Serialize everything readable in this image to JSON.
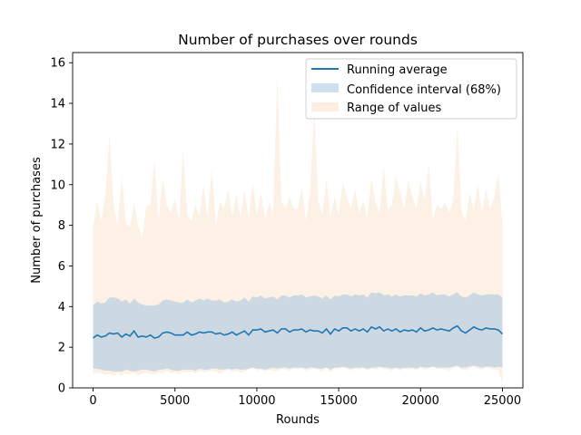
{
  "chart_data": {
    "type": "line",
    "title": "Number of purchases over rounds",
    "xlabel": "Rounds",
    "ylabel": "Number of purchases",
    "xlim": [
      -1250,
      26250
    ],
    "ylim": [
      0,
      16.5
    ],
    "xticks": [
      0,
      5000,
      10000,
      15000,
      20000,
      25000
    ],
    "yticks": [
      0,
      2,
      4,
      6,
      8,
      10,
      12,
      14,
      16
    ],
    "grid": false,
    "legend_position": "top-right",
    "x": [
      0,
      250,
      500,
      750,
      1000,
      1250,
      1500,
      1750,
      2000,
      2250,
      2500,
      2750,
      3000,
      3250,
      3500,
      3750,
      4000,
      4250,
      4500,
      4750,
      5000,
      5250,
      5500,
      5750,
      6000,
      6250,
      6500,
      6750,
      7000,
      7250,
      7500,
      7750,
      8000,
      8250,
      8500,
      8750,
      9000,
      9250,
      9500,
      9750,
      10000,
      10250,
      10500,
      10750,
      11000,
      11250,
      11500,
      11750,
      12000,
      12250,
      12500,
      12750,
      13000,
      13250,
      13500,
      13750,
      14000,
      14250,
      14500,
      14750,
      15000,
      15250,
      15500,
      15750,
      16000,
      16250,
      16500,
      16750,
      17000,
      17250,
      17500,
      17750,
      18000,
      18250,
      18500,
      18750,
      19000,
      19250,
      19500,
      19750,
      20000,
      20250,
      20500,
      20750,
      21000,
      21250,
      21500,
      21750,
      22000,
      22250,
      22500,
      22750,
      23000,
      23250,
      23500,
      23750,
      24000,
      24250,
      24500,
      24750,
      25000
    ],
    "series": [
      {
        "name": "Running average",
        "color": "#1f77b4",
        "values": [
          2.45,
          2.6,
          2.5,
          2.55,
          2.7,
          2.65,
          2.7,
          2.5,
          2.65,
          2.55,
          2.8,
          2.5,
          2.55,
          2.5,
          2.6,
          2.45,
          2.5,
          2.7,
          2.75,
          2.7,
          2.6,
          2.6,
          2.6,
          2.75,
          2.6,
          2.65,
          2.75,
          2.7,
          2.75,
          2.75,
          2.65,
          2.7,
          2.6,
          2.65,
          2.75,
          2.6,
          2.7,
          2.8,
          2.6,
          2.85,
          2.85,
          2.9,
          2.75,
          2.8,
          2.85,
          2.7,
          2.9,
          2.9,
          2.75,
          2.85,
          2.85,
          2.9,
          2.75,
          2.85,
          2.8,
          2.8,
          2.7,
          2.9,
          2.65,
          2.9,
          2.8,
          2.95,
          2.95,
          2.8,
          2.9,
          2.8,
          2.9,
          2.75,
          3.0,
          2.9,
          3.0,
          2.8,
          2.9,
          2.8,
          2.9,
          2.75,
          2.85,
          2.8,
          2.85,
          2.75,
          2.95,
          2.8,
          2.85,
          2.95,
          2.85,
          2.9,
          2.85,
          2.8,
          2.95,
          3.05,
          2.8,
          2.7,
          2.85,
          3.0,
          2.9,
          2.85,
          2.95,
          2.9,
          2.9,
          2.85,
          2.65
        ]
      },
      {
        "name": "Confidence interval (68%)",
        "color": "#a6c6e0",
        "lower": [
          0.95,
          0.95,
          0.9,
          0.85,
          0.85,
          0.8,
          0.8,
          0.8,
          0.9,
          0.85,
          0.8,
          0.85,
          0.9,
          0.9,
          0.85,
          0.8,
          0.9,
          0.9,
          0.95,
          0.9,
          0.85,
          0.85,
          0.9,
          0.9,
          0.9,
          0.85,
          0.95,
          0.9,
          0.9,
          0.95,
          0.95,
          0.9,
          0.9,
          0.95,
          0.9,
          0.95,
          0.9,
          0.9,
          0.95,
          1.0,
          0.95,
          0.95,
          0.9,
          0.95,
          1.0,
          0.95,
          1.0,
          1.0,
          0.95,
          1.0,
          1.0,
          1.0,
          0.95,
          1.0,
          1.0,
          0.95,
          0.95,
          1.0,
          0.9,
          1.0,
          1.0,
          1.05,
          1.0,
          0.95,
          1.0,
          1.0,
          1.0,
          0.95,
          1.0,
          1.0,
          1.05,
          1.0,
          1.0,
          0.95,
          1.0,
          0.95,
          1.0,
          1.0,
          1.0,
          0.95,
          1.05,
          1.0,
          1.0,
          1.05,
          1.0,
          1.0,
          1.0,
          1.0,
          1.05,
          1.1,
          1.0,
          1.0,
          1.05,
          1.1,
          1.05,
          1.0,
          1.05,
          1.05,
          1.0,
          1.05,
          1.0
        ],
        "upper": [
          4.05,
          4.25,
          4.15,
          4.2,
          4.45,
          4.45,
          4.4,
          4.25,
          4.35,
          4.15,
          4.4,
          4.2,
          4.1,
          4.05,
          4.05,
          4.05,
          4.1,
          4.3,
          4.35,
          4.3,
          4.25,
          4.2,
          4.2,
          4.35,
          4.2,
          4.3,
          4.4,
          4.3,
          4.4,
          4.3,
          4.3,
          4.35,
          4.2,
          4.25,
          4.35,
          4.25,
          4.3,
          4.45,
          4.25,
          4.5,
          4.45,
          4.55,
          4.4,
          4.45,
          4.5,
          4.35,
          4.55,
          4.55,
          4.45,
          4.55,
          4.55,
          4.6,
          4.45,
          4.5,
          4.55,
          4.5,
          4.4,
          4.55,
          4.35,
          4.55,
          4.5,
          4.6,
          4.6,
          4.5,
          4.6,
          4.55,
          4.6,
          4.45,
          4.7,
          4.65,
          4.7,
          4.55,
          4.6,
          4.5,
          4.6,
          4.5,
          4.55,
          4.55,
          4.55,
          4.5,
          4.65,
          4.55,
          4.6,
          4.7,
          4.55,
          4.6,
          4.6,
          4.5,
          4.6,
          4.7,
          4.5,
          4.45,
          4.55,
          4.7,
          4.6,
          4.55,
          4.6,
          4.6,
          4.6,
          4.6,
          4.45
        ]
      },
      {
        "name": "Range of values",
        "color": "#fdeee2",
        "lower": [
          0.7,
          0.75,
          0.7,
          0.65,
          0.7,
          0.6,
          0.75,
          0.6,
          0.7,
          0.65,
          0.75,
          0.6,
          0.7,
          0.75,
          0.7,
          0.65,
          0.75,
          0.7,
          0.85,
          0.7,
          0.75,
          0.7,
          0.8,
          0.75,
          0.8,
          0.7,
          0.85,
          0.75,
          0.8,
          0.85,
          0.8,
          0.7,
          0.8,
          0.9,
          0.8,
          0.85,
          0.75,
          0.8,
          0.9,
          1.0,
          0.85,
          0.9,
          0.8,
          0.9,
          0.85,
          0.8,
          0.95,
          0.9,
          0.85,
          0.95,
          0.9,
          1.0,
          0.85,
          0.9,
          0.95,
          0.9,
          0.8,
          1.0,
          0.75,
          0.95,
          0.95,
          1.0,
          0.95,
          0.85,
          0.95,
          0.9,
          1.0,
          0.85,
          0.95,
          0.9,
          1.0,
          0.95,
          0.9,
          0.85,
          1.0,
          0.85,
          0.95,
          0.9,
          0.95,
          0.85,
          1.0,
          0.9,
          0.95,
          1.05,
          0.9,
          0.95,
          0.9,
          0.85,
          1.0,
          1.05,
          0.9,
          0.85,
          0.95,
          1.05,
          0.95,
          0.9,
          1.0,
          0.95,
          0.9,
          0.9,
          0.2
        ],
        "upper": [
          7.9,
          9.2,
          8.2,
          9.5,
          12.5,
          9.0,
          8.0,
          10.4,
          8.1,
          7.9,
          9.1,
          8.0,
          7.4,
          8.9,
          9.0,
          11.2,
          8.2,
          10.3,
          9.0,
          8.6,
          9.3,
          8.2,
          11.7,
          8.5,
          8.2,
          9.0,
          8.4,
          10.0,
          8.3,
          10.8,
          8.0,
          9.2,
          8.8,
          9.8,
          8.4,
          9.5,
          8.4,
          9.8,
          8.3,
          10.1,
          8.5,
          9.6,
          8.3,
          9.1,
          8.6,
          15.4,
          9.2,
          8.8,
          9.4,
          8.8,
          8.8,
          9.8,
          8.2,
          9.6,
          13.7,
          9.2,
          8.5,
          10.3,
          8.4,
          9.4,
          8.5,
          10.1,
          9.4,
          8.8,
          9.8,
          8.6,
          9.2,
          8.4,
          10.3,
          9.1,
          8.6,
          10.9,
          8.7,
          9.0,
          10.4,
          9.6,
          8.8,
          10.2,
          9.4,
          8.8,
          10.1,
          9.2,
          11.0,
          8.3,
          9.0,
          8.8,
          9.1,
          8.6,
          9.3,
          12.9,
          8.7,
          8.2,
          9.6,
          8.8,
          10.0,
          8.6,
          9.8,
          8.8,
          9.4,
          10.6,
          8.1
        ]
      }
    ]
  }
}
